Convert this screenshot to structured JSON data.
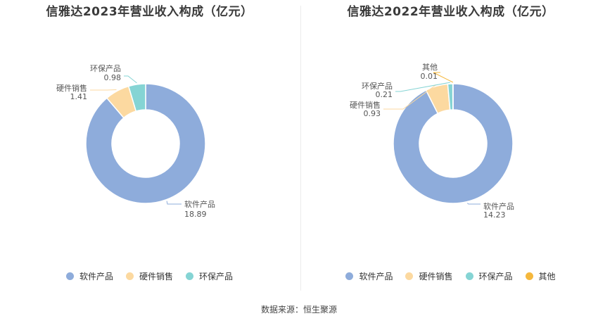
{
  "colors": {
    "软件产品": "#8eacdb",
    "硬件销售": "#fcd9a0",
    "环保产品": "#85d4d4",
    "其他": "#f5b83d"
  },
  "chart_data": [
    {
      "type": "pie",
      "title": "信雅达2023年营业收入构成（亿元）",
      "slices": [
        {
          "name": "软件产品",
          "value": 18.89
        },
        {
          "name": "硬件销售",
          "value": 1.41
        },
        {
          "name": "环保产品",
          "value": 0.98
        }
      ],
      "legend": [
        "软件产品",
        "硬件销售",
        "环保产品"
      ],
      "legend_position": "bottom"
    },
    {
      "type": "pie",
      "title": "信雅达2022年营业收入构成（亿元）",
      "slices": [
        {
          "name": "软件产品",
          "value": 14.23
        },
        {
          "name": "硬件销售",
          "value": 0.93
        },
        {
          "name": "环保产品",
          "value": 0.21
        },
        {
          "name": "其他",
          "value": 0.01
        }
      ],
      "legend": [
        "软件产品",
        "硬件销售",
        "环保产品",
        "其他"
      ],
      "legend_position": "bottom"
    }
  ],
  "source": "数据来源：恒生聚源"
}
